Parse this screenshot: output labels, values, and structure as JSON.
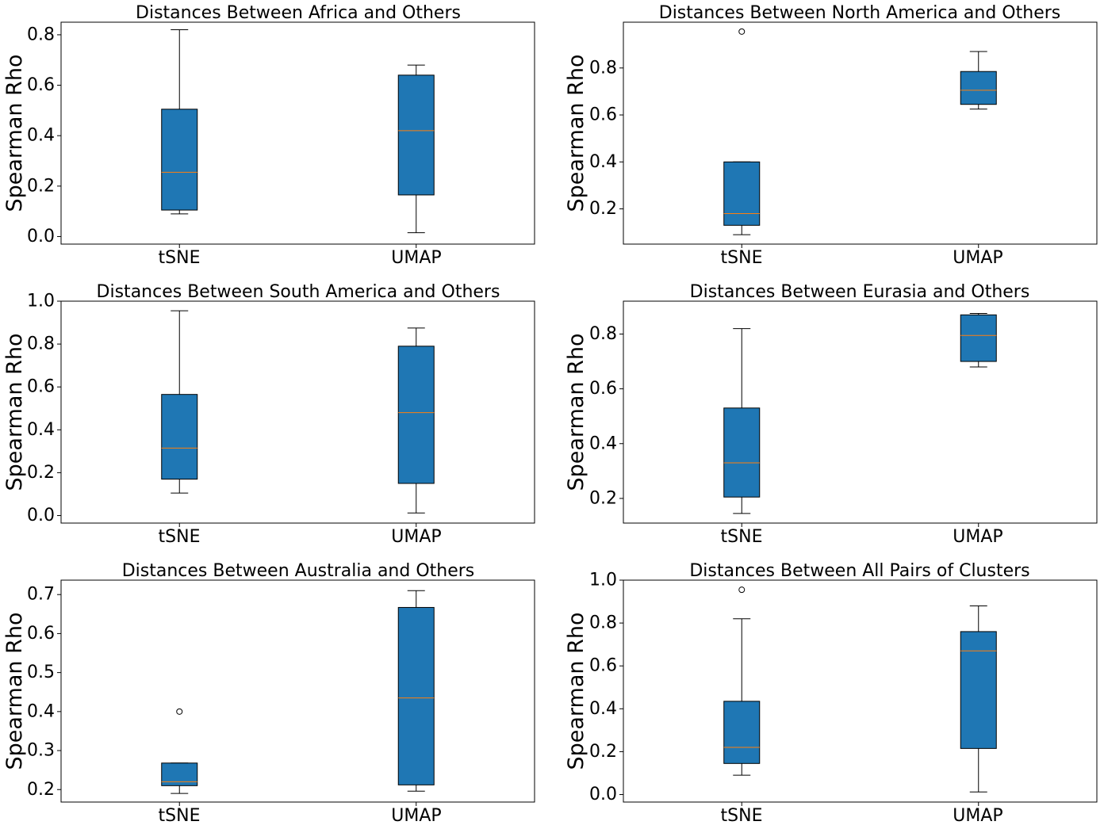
{
  "colors": {
    "box_fill": "#1f77b4",
    "median": "#ff7f0e",
    "axes": "#000000"
  },
  "chart_data": [
    {
      "type": "box",
      "title": "Distances Between Africa and Others",
      "ylabel": "Spearman Rho",
      "categories": [
        "tSNE",
        "UMAP"
      ],
      "ylim": [
        -0.03,
        0.85
      ],
      "yticks": [
        0.0,
        0.2,
        0.4,
        0.6,
        0.8
      ],
      "tick_labels": [
        "0.0",
        "0.2",
        "0.4",
        "0.6",
        "0.8"
      ],
      "boxes": [
        {
          "whislo": 0.09,
          "q1": 0.105,
          "med": 0.255,
          "q3": 0.505,
          "whishi": 0.82,
          "fliers": []
        },
        {
          "whislo": 0.015,
          "q1": 0.165,
          "med": 0.42,
          "q3": 0.64,
          "whishi": 0.68,
          "fliers": []
        }
      ]
    },
    {
      "type": "box",
      "title": "Distances Between North America and Others",
      "ylabel": "Spearman Rho",
      "categories": [
        "tSNE",
        "UMAP"
      ],
      "ylim": [
        0.05,
        0.995
      ],
      "yticks": [
        0.2,
        0.4,
        0.6,
        0.8
      ],
      "tick_labels": [
        "0.2",
        "0.4",
        "0.6",
        "0.8"
      ],
      "boxes": [
        {
          "whislo": 0.09,
          "q1": 0.13,
          "med": 0.18,
          "q3": 0.4,
          "whishi": 0.4,
          "fliers": [
            0.955
          ]
        },
        {
          "whislo": 0.625,
          "q1": 0.645,
          "med": 0.705,
          "q3": 0.785,
          "whishi": 0.87,
          "fliers": []
        }
      ]
    },
    {
      "type": "box",
      "title": "Distances Between South America and Others",
      "ylabel": "Spearman Rho",
      "categories": [
        "tSNE",
        "UMAP"
      ],
      "ylim": [
        -0.035,
        1.0
      ],
      "yticks": [
        0.0,
        0.2,
        0.4,
        0.6,
        0.8,
        1.0
      ],
      "tick_labels": [
        "0.0",
        "0.2",
        "0.4",
        "0.6",
        "0.8",
        "1.0"
      ],
      "boxes": [
        {
          "whislo": 0.105,
          "q1": 0.17,
          "med": 0.315,
          "q3": 0.565,
          "whishi": 0.955,
          "fliers": []
        },
        {
          "whislo": 0.012,
          "q1": 0.15,
          "med": 0.48,
          "q3": 0.79,
          "whishi": 0.875,
          "fliers": []
        }
      ]
    },
    {
      "type": "box",
      "title": "Distances Between Eurasia and Others",
      "ylabel": "Spearman Rho",
      "categories": [
        "tSNE",
        "UMAP"
      ],
      "ylim": [
        0.11,
        0.92
      ],
      "yticks": [
        0.2,
        0.4,
        0.6,
        0.8
      ],
      "tick_labels": [
        "0.2",
        "0.4",
        "0.6",
        "0.8"
      ],
      "boxes": [
        {
          "whislo": 0.145,
          "q1": 0.205,
          "med": 0.33,
          "q3": 0.53,
          "whishi": 0.82,
          "fliers": []
        },
        {
          "whislo": 0.68,
          "q1": 0.7,
          "med": 0.795,
          "q3": 0.87,
          "whishi": 0.875,
          "fliers": []
        }
      ]
    },
    {
      "type": "box",
      "title": "Distances Between Australia and Others",
      "ylabel": "Spearman Rho",
      "categories": [
        "tSNE",
        "UMAP"
      ],
      "ylim": [
        0.168,
        0.737
      ],
      "yticks": [
        0.2,
        0.3,
        0.4,
        0.5,
        0.6,
        0.7
      ],
      "tick_labels": [
        "0.2",
        "0.3",
        "0.4",
        "0.5",
        "0.6",
        "0.7"
      ],
      "boxes": [
        {
          "whislo": 0.19,
          "q1": 0.21,
          "med": 0.22,
          "q3": 0.268,
          "whishi": 0.268,
          "fliers": [
            0.4
          ]
        },
        {
          "whislo": 0.196,
          "q1": 0.212,
          "med": 0.435,
          "q3": 0.667,
          "whishi": 0.71,
          "fliers": []
        }
      ]
    },
    {
      "type": "box",
      "title": "Distances Between All Pairs of Clusters",
      "ylabel": "Spearman Rho",
      "categories": [
        "tSNE",
        "UMAP"
      ],
      "ylim": [
        -0.035,
        1.0
      ],
      "yticks": [
        0.0,
        0.2,
        0.4,
        0.6,
        0.8,
        1.0
      ],
      "tick_labels": [
        "0.0",
        "0.2",
        "0.4",
        "0.6",
        "0.8",
        "1.0"
      ],
      "boxes": [
        {
          "whislo": 0.09,
          "q1": 0.145,
          "med": 0.22,
          "q3": 0.435,
          "whishi": 0.82,
          "fliers": [
            0.955
          ]
        },
        {
          "whislo": 0.012,
          "q1": 0.215,
          "med": 0.67,
          "q3": 0.76,
          "whishi": 0.88,
          "fliers": []
        }
      ]
    }
  ]
}
